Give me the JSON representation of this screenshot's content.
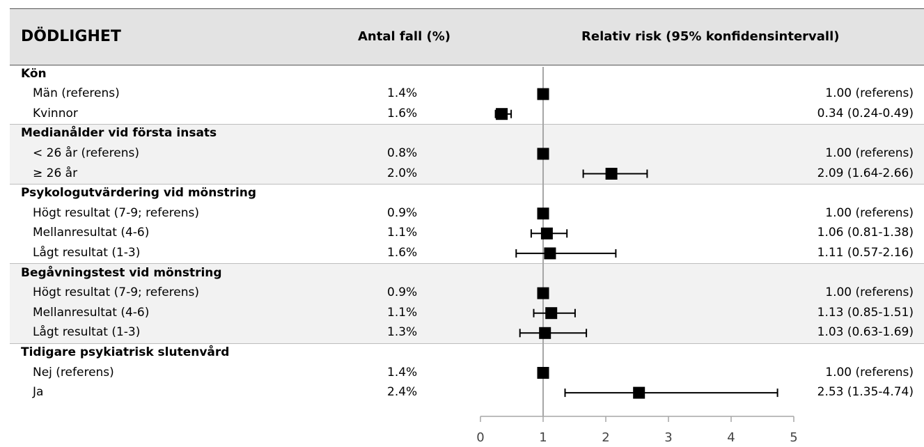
{
  "header": {
    "title": "DÖDLIGHET",
    "cases_label": "Antal fall (%)",
    "rr_label": "Relativ risk (95% konfidensintervall)"
  },
  "chart_data": {
    "type": "forest",
    "xlim": [
      0,
      5
    ],
    "reference_value": 1,
    "xticks": [
      "0",
      "1",
      "2",
      "3",
      "4",
      "5"
    ],
    "groups": [
      {
        "label": "Kön",
        "shaded": false,
        "rows": [
          {
            "label": "Män (referens)",
            "cases": "1.4%",
            "rr_text": "1.00 (referens)",
            "rr": 1.0,
            "lo": null,
            "hi": null
          },
          {
            "label": "Kvinnor",
            "cases": "1.6%",
            "rr_text": "0.34 (0.24-0.49)",
            "rr": 0.34,
            "lo": 0.24,
            "hi": 0.49
          }
        ]
      },
      {
        "label": "Medianålder vid första insats",
        "shaded": true,
        "rows": [
          {
            "label": "< 26 år (referens)",
            "cases": "0.8%",
            "rr_text": "1.00 (referens)",
            "rr": 1.0,
            "lo": null,
            "hi": null
          },
          {
            "label": "≥ 26 år",
            "cases": "2.0%",
            "rr_text": "2.09 (1.64-2.66)",
            "rr": 2.09,
            "lo": 1.64,
            "hi": 2.66
          }
        ]
      },
      {
        "label": "Psykologutvärdering vid mönstring",
        "shaded": false,
        "rows": [
          {
            "label": "Högt resultat (7-9; referens)",
            "cases": "0.9%",
            "rr_text": "1.00 (referens)",
            "rr": 1.0,
            "lo": null,
            "hi": null
          },
          {
            "label": "Mellanresultat (4-6)",
            "cases": "1.1%",
            "rr_text": "1.06 (0.81-1.38)",
            "rr": 1.06,
            "lo": 0.81,
            "hi": 1.38
          },
          {
            "label": "Lågt resultat (1-3)",
            "cases": "1.6%",
            "rr_text": "1.11 (0.57-2.16)",
            "rr": 1.11,
            "lo": 0.57,
            "hi": 2.16
          }
        ]
      },
      {
        "label": "Begåvningstest vid mönstring",
        "shaded": true,
        "rows": [
          {
            "label": "Högt resultat (7-9; referens)",
            "cases": "0.9%",
            "rr_text": "1.00 (referens)",
            "rr": 1.0,
            "lo": null,
            "hi": null
          },
          {
            "label": "Mellanresultat (4-6)",
            "cases": "1.1%",
            "rr_text": "1.13 (0.85-1.51)",
            "rr": 1.13,
            "lo": 0.85,
            "hi": 1.51
          },
          {
            "label": "Lågt resultat (1-3)",
            "cases": "1.3%",
            "rr_text": "1.03 (0.63-1.69)",
            "rr": 1.03,
            "lo": 0.63,
            "hi": 1.69
          }
        ]
      },
      {
        "label": "Tidigare psykiatrisk slutenvård",
        "shaded": false,
        "rows": [
          {
            "label": "Nej (referens)",
            "cases": "1.4%",
            "rr_text": "1.00 (referens)",
            "rr": 1.0,
            "lo": null,
            "hi": null
          },
          {
            "label": "Ja",
            "cases": "2.4%",
            "rr_text": "2.53 (1.35-4.74)",
            "rr": 2.53,
            "lo": 1.35,
            "hi": 4.74
          }
        ]
      }
    ]
  }
}
